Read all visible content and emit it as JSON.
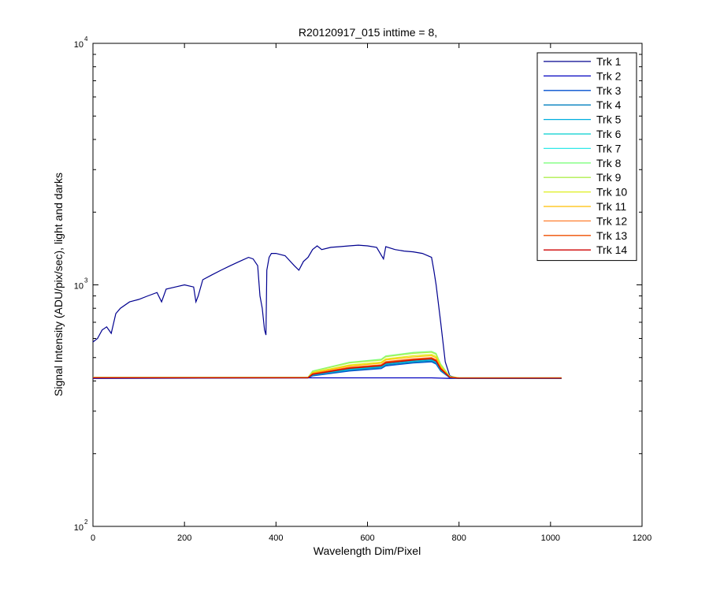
{
  "chart_data": {
    "type": "line",
    "title": "R20120917_015 inttime = 8,",
    "xlabel": "Wavelength Dim/Pixel",
    "ylabel": "Signal Intensity (ADU/pix/sec), light and darks",
    "xlim": [
      0,
      1200
    ],
    "ylim": [
      100,
      10000
    ],
    "yscale": "log",
    "xticks": [
      0,
      200,
      400,
      600,
      800,
      1000,
      1200
    ],
    "xtick_labels": [
      "0",
      "200",
      "400",
      "600",
      "800",
      "1000",
      "1200"
    ],
    "yticks": [
      100,
      1000,
      10000
    ],
    "ytick_base": "10",
    "ytick_exponents": [
      "2",
      "3",
      "4"
    ],
    "grid": false,
    "legend_position": "top-right",
    "series": [
      {
        "name": "Trk 1",
        "color": "#00008F",
        "x": [
          0,
          10,
          20,
          30,
          40,
          50,
          60,
          80,
          100,
          120,
          140,
          150,
          160,
          180,
          200,
          220,
          225,
          230,
          240,
          260,
          280,
          300,
          320,
          340,
          350,
          360,
          365,
          370,
          375,
          378,
          380,
          385,
          390,
          400,
          420,
          440,
          450,
          460,
          470,
          480,
          490,
          500,
          520,
          540,
          560,
          580,
          600,
          620,
          635,
          640,
          660,
          680,
          700,
          720,
          740,
          745,
          750,
          760,
          770,
          780,
          800,
          900,
          1000,
          1024
        ],
        "y": [
          580,
          600,
          650,
          670,
          630,
          760,
          800,
          850,
          870,
          900,
          930,
          850,
          960,
          980,
          1000,
          980,
          850,
          900,
          1050,
          1100,
          1150,
          1200,
          1250,
          1300,
          1280,
          1200,
          900,
          800,
          650,
          620,
          1150,
          1300,
          1350,
          1350,
          1320,
          1200,
          1150,
          1250,
          1300,
          1400,
          1450,
          1400,
          1430,
          1440,
          1450,
          1460,
          1450,
          1430,
          1280,
          1440,
          1400,
          1380,
          1370,
          1350,
          1300,
          1150,
          1000,
          700,
          480,
          420,
          410,
          410,
          410,
          410
        ]
      },
      {
        "name": "Trk 2",
        "color": "#0000BF",
        "x": [
          0,
          470,
          700,
          740,
          760,
          780,
          1024
        ],
        "y": [
          410,
          412,
          412,
          412,
          411,
          410,
          410
        ]
      },
      {
        "name": "Trk 3",
        "color": "#004FCF",
        "x": [
          0,
          470,
          480,
          560,
          630,
          640,
          700,
          740,
          750,
          760,
          780,
          800,
          1024
        ],
        "y": [
          412,
          412,
          420,
          440,
          450,
          462,
          475,
          480,
          470,
          440,
          412,
          410,
          410
        ]
      },
      {
        "name": "Trk 4",
        "color": "#007FBF",
        "x": [
          0,
          470,
          480,
          560,
          630,
          640,
          700,
          740,
          750,
          760,
          780,
          800,
          1024
        ],
        "y": [
          412,
          412,
          422,
          443,
          454,
          466,
          478,
          484,
          474,
          442,
          413,
          410,
          410
        ]
      },
      {
        "name": "Trk 5",
        "color": "#00AFDF",
        "x": [
          0,
          470,
          480,
          560,
          630,
          640,
          700,
          740,
          750,
          760,
          780,
          800,
          1024
        ],
        "y": [
          413,
          413,
          424,
          446,
          457,
          470,
          482,
          488,
          478,
          445,
          414,
          411,
          411
        ]
      },
      {
        "name": "Trk 6",
        "color": "#00CFCF",
        "x": [
          0,
          470,
          480,
          560,
          630,
          640,
          700,
          740,
          750,
          760,
          780,
          800,
          1024
        ],
        "y": [
          413,
          413,
          426,
          449,
          460,
          473,
          486,
          492,
          482,
          448,
          414,
          411,
          411
        ]
      },
      {
        "name": "Trk 7",
        "color": "#30E8E8",
        "x": [
          0,
          470,
          480,
          560,
          630,
          640,
          700,
          740,
          750,
          760,
          780,
          800,
          1024
        ],
        "y": [
          413,
          413,
          428,
          452,
          463,
          477,
          490,
          496,
          486,
          450,
          415,
          412,
          412
        ]
      },
      {
        "name": "Trk 8",
        "color": "#7FFF7F",
        "x": [
          0,
          470,
          480,
          560,
          630,
          640,
          700,
          740,
          750,
          760,
          780,
          800,
          1024
        ],
        "y": [
          414,
          414,
          440,
          478,
          492,
          508,
          525,
          530,
          520,
          470,
          418,
          412,
          412
        ]
      },
      {
        "name": "Trk 9",
        "color": "#AFEF4F",
        "x": [
          0,
          470,
          480,
          560,
          630,
          640,
          700,
          740,
          750,
          760,
          780,
          800,
          1024
        ],
        "y": [
          414,
          414,
          438,
          475,
          488,
          504,
          520,
          526,
          516,
          467,
          417,
          412,
          412
        ]
      },
      {
        "name": "Trk 10",
        "color": "#DFEF1F",
        "x": [
          0,
          470,
          480,
          560,
          630,
          640,
          700,
          740,
          750,
          760,
          780,
          800,
          1024
        ],
        "y": [
          413,
          413,
          434,
          466,
          479,
          494,
          509,
          515,
          505,
          460,
          416,
          412,
          412
        ]
      },
      {
        "name": "Trk 11",
        "color": "#FFBF00",
        "x": [
          0,
          470,
          480,
          560,
          630,
          640,
          700,
          740,
          750,
          760,
          780,
          800,
          1024
        ],
        "y": [
          413,
          413,
          432,
          462,
          474,
          489,
          503,
          509,
          499,
          457,
          415,
          411,
          411
        ]
      },
      {
        "name": "Trk 12",
        "color": "#FF7F2F",
        "x": [
          0,
          470,
          480,
          560,
          630,
          640,
          700,
          740,
          750,
          760,
          780,
          800,
          1024
        ],
        "y": [
          413,
          413,
          429,
          456,
          467,
          481,
          494,
          500,
          490,
          452,
          415,
          411,
          411
        ]
      },
      {
        "name": "Trk 13",
        "color": "#EF4F00",
        "x": [
          0,
          470,
          480,
          560,
          630,
          640,
          700,
          740,
          750,
          760,
          780,
          800,
          1024
        ],
        "y": [
          413,
          413,
          428,
          454,
          465,
          479,
          492,
          498,
          488,
          451,
          414,
          411,
          411
        ]
      },
      {
        "name": "Trk 14",
        "color": "#CF0000",
        "x": [
          0,
          470,
          480,
          560,
          630,
          640,
          700,
          740,
          750,
          760,
          780,
          800,
          1024
        ],
        "y": [
          412,
          412,
          426,
          451,
          462,
          475,
          488,
          494,
          484,
          448,
          414,
          411,
          411
        ]
      }
    ]
  }
}
